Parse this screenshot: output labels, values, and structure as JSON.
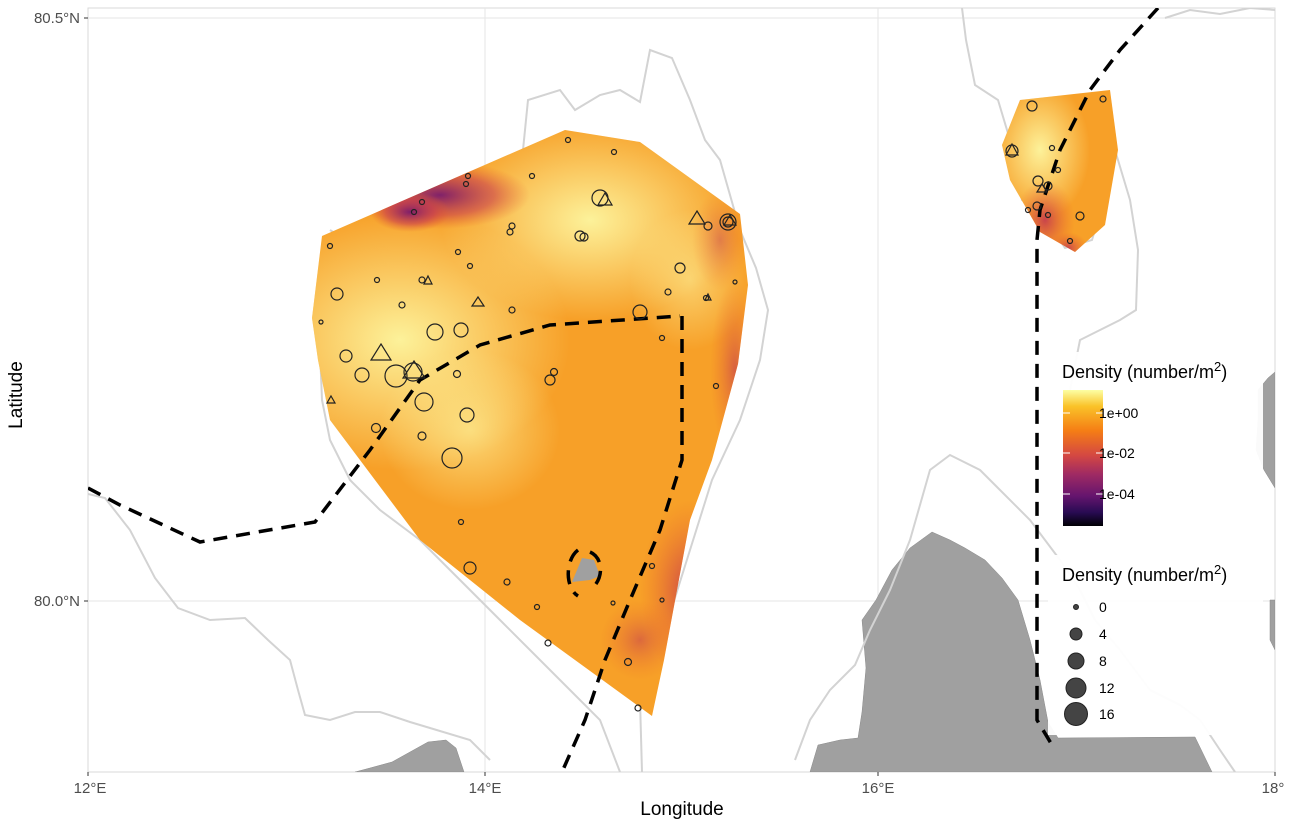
{
  "axes": {
    "x_title": "Longitude",
    "y_title": "Latitude",
    "x_ticks": [
      "12°E",
      "14°E",
      "16°E",
      "18°"
    ],
    "y_ticks": [
      "80.5°N",
      "80.0°N"
    ]
  },
  "legend_colorbar": {
    "title_base": "Density (number/m",
    "title_sup": "2",
    "title_end": ")",
    "labels": [
      "1e+00",
      "1e-02",
      "1e-04"
    ],
    "colors": [
      "#fcffa4",
      "#fac228",
      "#f57d15",
      "#d44842",
      "#9f2a63",
      "#65156e",
      "#280b53",
      "#000004"
    ]
  },
  "legend_size": {
    "title_base": "Density (number/m",
    "title_sup": "2",
    "title_end": ")",
    "labels": [
      "0",
      "4",
      "8",
      "12",
      "16"
    ]
  },
  "colors": {
    "land": "#a0a0a0",
    "coastline": "#d3d3d3",
    "grid": "#e6e6e6",
    "boundary": "#000000"
  }
}
